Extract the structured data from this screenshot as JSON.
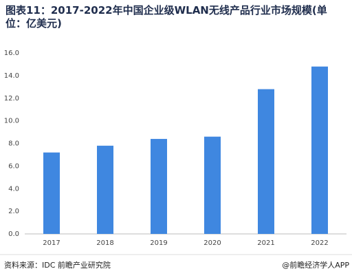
{
  "chart_data": {
    "type": "bar",
    "title": "图表11：2017-2022年中国企业级WLAN无线产品行业市场规模(单位：亿美元)",
    "categories": [
      "2017",
      "2018",
      "2019",
      "2020",
      "2021",
      "2022"
    ],
    "values": [
      7.2,
      7.8,
      8.4,
      8.6,
      12.8,
      14.8
    ],
    "color": "#3f87e0",
    "ylim": [
      0,
      16
    ],
    "yticks": [
      {
        "value": 0,
        "label": "0.0"
      },
      {
        "value": 2,
        "label": "2.0"
      },
      {
        "value": 4,
        "label": "4.0"
      },
      {
        "value": 6,
        "label": "6.0"
      },
      {
        "value": 8,
        "label": "8.0"
      },
      {
        "value": 10,
        "label": "10.0"
      },
      {
        "value": 12,
        "label": "12.0"
      },
      {
        "value": 14,
        "label": "14.0"
      },
      {
        "value": 16,
        "label": "16.0"
      }
    ],
    "grid": false,
    "source": "资料来源：IDC 前瞻产业研究院",
    "credit": "@前瞻经济学人APP"
  }
}
